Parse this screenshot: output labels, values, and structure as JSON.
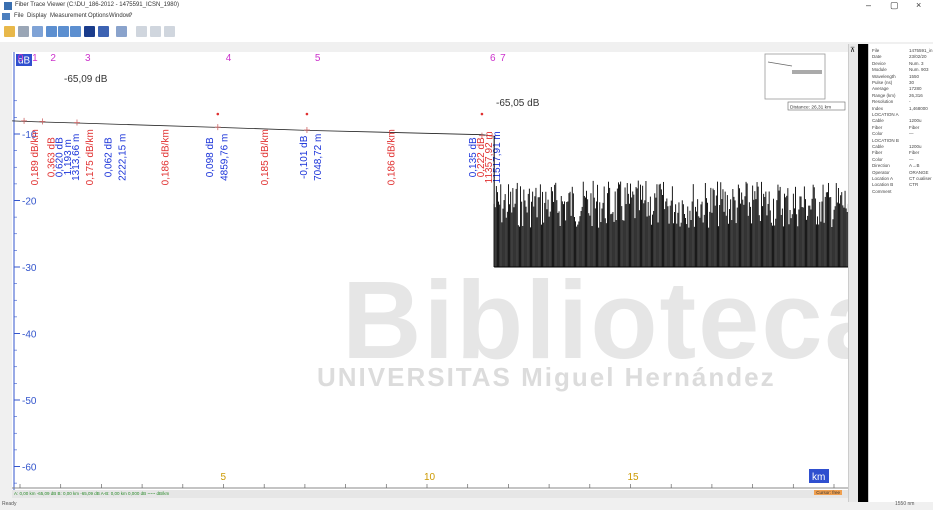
{
  "window": {
    "title": "Fiber Trace Viewer (C:\\DU_186-2012 - 1475591_ICSN_1980)",
    "minimize": "–",
    "restore": "▢",
    "close": "×"
  },
  "menu": [
    "File",
    "Display",
    "Measurement",
    "Options",
    "Window",
    "?"
  ],
  "toolbar_icons": [
    "open-folder-icon",
    "print-icon",
    "zoom-fit-icon",
    "zoom-in-icon",
    "zoom-out-icon",
    "cross-cursor-icon",
    "grid-icon",
    "table-icon",
    "marker-a-icon",
    "marker-b-icon",
    "marker-c-icon"
  ],
  "plot": {
    "y_unit": "dB",
    "x_unit": "km",
    "y_ticks": [
      {
        "label": "-10",
        "v": -10
      },
      {
        "label": "-20",
        "v": -20
      },
      {
        "label": "-30",
        "v": -30
      },
      {
        "label": "-40",
        "v": -40
      },
      {
        "label": "-50",
        "v": -50
      },
      {
        "label": "-60",
        "v": -60
      }
    ],
    "x_ticks": [
      {
        "label": "5",
        "v": 5
      },
      {
        "label": "10",
        "v": 10
      },
      {
        "label": "15",
        "v": 15
      }
    ],
    "event_numbers": [
      {
        "label": "0",
        "x": -0.25
      },
      {
        "label": "1",
        "x": 0.1
      },
      {
        "label": "2",
        "x": 0.55
      },
      {
        "label": "3",
        "x": 1.4
      },
      {
        "label": "4",
        "x": 4.86
      },
      {
        "label": "5",
        "x": 7.05
      },
      {
        "label": "6",
        "x": 11.35
      },
      {
        "label": "7",
        "x": 11.6
      }
    ],
    "start_level": "-65,09 dB",
    "end_level": "-65,05 dB",
    "event_labels": [
      {
        "text": "0,189 dB/km",
        "color": "red",
        "x": 0.35
      },
      {
        "text": "0,363 dB",
        "color": "red",
        "x": 0.75
      },
      {
        "text": "0,620 dB",
        "color": "blue",
        "x": 0.95
      },
      {
        "text": "1,193 m",
        "color": "blue",
        "x": 1.15
      },
      {
        "text": "1313,66 m",
        "color": "blue",
        "x": 1.35
      },
      {
        "text": "0,175 dB/km",
        "color": "red",
        "x": 1.7
      },
      {
        "text": "0,062 dB",
        "color": "blue",
        "x": 2.15
      },
      {
        "text": "2222,15 m",
        "color": "blue",
        "x": 2.5
      },
      {
        "text": "0,186 dB/km",
        "color": "red",
        "x": 3.55
      },
      {
        "text": "0,098 dB",
        "color": "blue",
        "x": 4.65
      },
      {
        "text": "4859,76 m",
        "color": "blue",
        "x": 5.0
      },
      {
        "text": "0,185 dB/km",
        "color": "red",
        "x": 6.0
      },
      {
        "text": "-0,101 dB",
        "color": "blue",
        "x": 6.95
      },
      {
        "text": "7048,72 m",
        "color": "blue",
        "x": 7.3
      },
      {
        "text": "0,186 dB/km",
        "color": "red",
        "x": 9.1
      },
      {
        "text": "0,135 dB",
        "color": "blue",
        "x": 11.1
      },
      {
        "text": "0,222 dB",
        "color": "red",
        "x": 11.3
      },
      {
        "text": "11357,92 m",
        "color": "red",
        "x": 11.5
      },
      {
        "text": "11517,91 m",
        "color": "blue",
        "x": 11.7
      }
    ],
    "trace": {
      "x": [
        -0.3,
        0.1,
        0.55,
        1.4,
        4.86,
        7.05,
        11.35,
        11.62
      ],
      "y": [
        -8.0,
        -8.1,
        -8.2,
        -8.35,
        -9.0,
        -9.45,
        -10.1,
        -10.3
      ]
    },
    "noise_floor": {
      "x_start": 11.65,
      "x_end": 20.6,
      "bottom": -30,
      "top": -17
    }
  },
  "minimap": {
    "label": "Distance: 26,31 km"
  },
  "info_panel": {
    "rows": [
      {
        "k": "File",
        "v": "1475591_in"
      },
      {
        "k": "Date",
        "v": "23/02/20"
      },
      {
        "k": "Device",
        "v": "Num. 3"
      },
      {
        "k": "Module",
        "v": "Num. 903"
      },
      {
        "k": "Wavelength",
        "v": "1550"
      },
      {
        "k": "Pulse (ns)",
        "v": "30"
      },
      {
        "k": "Average",
        "v": "17280"
      },
      {
        "k": "Range (km)",
        "v": "26,316"
      },
      {
        "k": "Resolution",
        "v": "-"
      },
      {
        "k": "Index",
        "v": "1,468000"
      },
      {
        "k": "LOCATION A",
        "v": ""
      },
      {
        "k": "Cable",
        "v": "1200u"
      },
      {
        "k": "Fiber",
        "v": "Fiber"
      },
      {
        "k": "Color",
        "v": "—"
      },
      {
        "k": "LOCATION B",
        "v": ""
      },
      {
        "k": "Cable",
        "v": "1200u"
      },
      {
        "k": "Fiber",
        "v": "Fiber"
      },
      {
        "k": "Color",
        "v": "—"
      },
      {
        "k": "Direction",
        "v": "A→B"
      },
      {
        "k": "Operator",
        "v": "ORANGE"
      },
      {
        "k": "Location A",
        "v": "CT cualiser"
      },
      {
        "k": "Location B",
        "v": "CTR"
      },
      {
        "k": "Comment",
        "v": ""
      }
    ]
  },
  "status": {
    "readout": "A: 0,00 km  -65,09 dB   B: 0,00 km  -65,09 dB   A-B: 0,00 km  0,000 dB   ~~~ dB/km",
    "badge": "Cursor: free",
    "bottom_left": "Ready",
    "bottom_right": "1550 nm"
  },
  "watermark": {
    "main": "Biblioteca",
    "sub": "UNIVERSITAS Miguel Hernández"
  },
  "colors": {
    "trace": "#222222",
    "blue_label": "#1a33d9",
    "red_label": "#e03030",
    "magenta": "#cc33cc",
    "axis_blue": "#3355cc",
    "watermark": "#e8e8e8"
  }
}
